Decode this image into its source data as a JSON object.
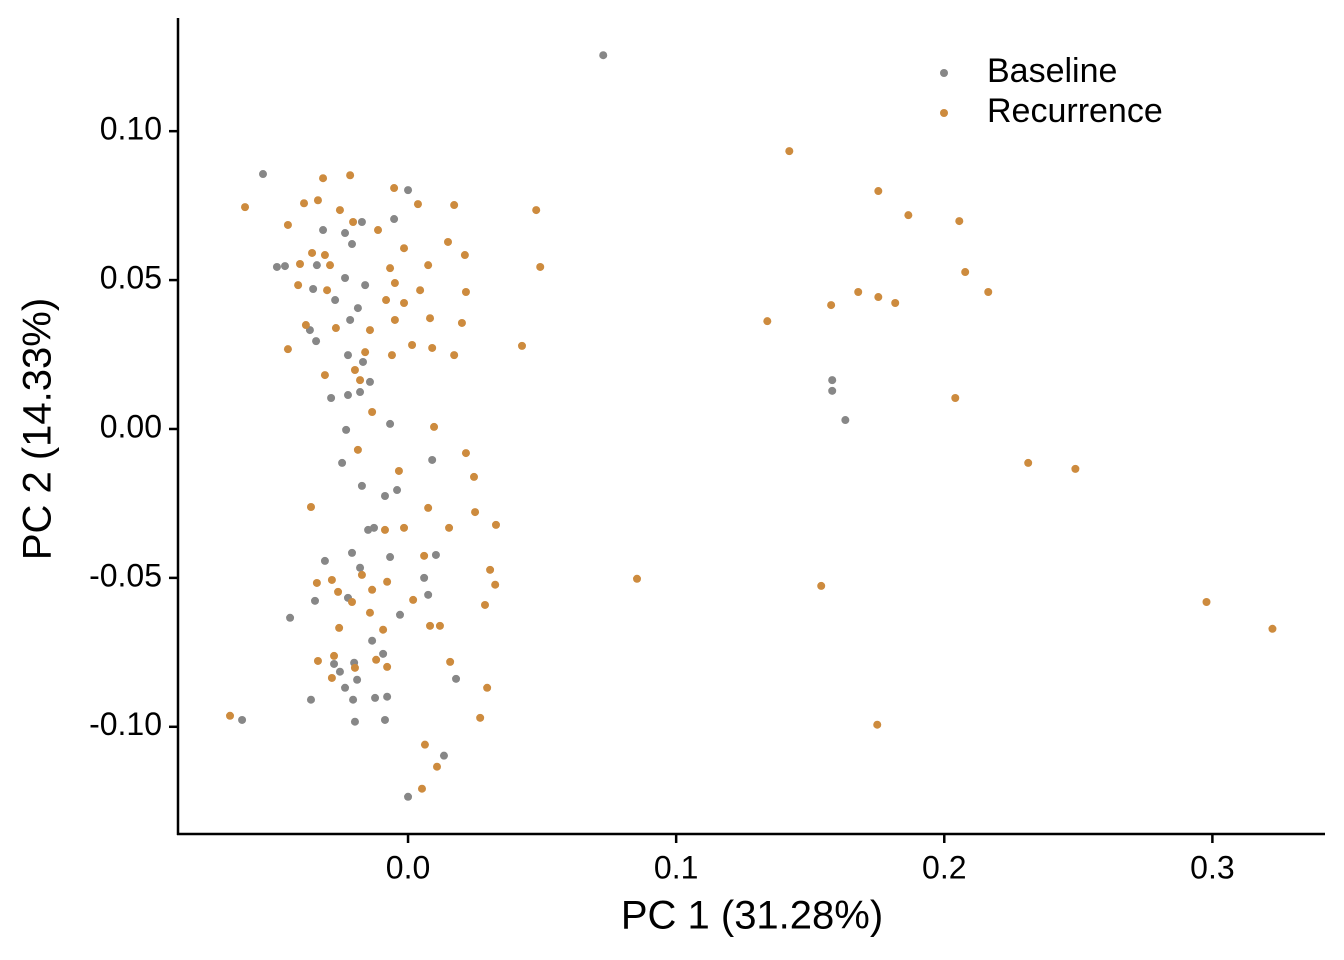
{
  "chart_data": {
    "type": "scatter",
    "xlabel": "PC 1 (31.28%)",
    "ylabel": "PC 2 (14.33%)",
    "xlim": [
      -0.0858,
      0.342
    ],
    "ylim": [
      -0.136,
      0.138
    ],
    "xticks": [
      {
        "value": 0,
        "label": "0.0"
      },
      0.1,
      0.2,
      0.3
    ],
    "yticks": [
      {
        "value": -0.1,
        "label": "-0.10"
      },
      -0.05,
      {
        "value": 0,
        "label": "0.00"
      },
      0.05,
      {
        "value": 0.1,
        "label": "0.10"
      }
    ],
    "grid": false,
    "legend": "top-right",
    "series": [
      {
        "name": "Baseline",
        "color": "#878787",
        "x": [
          0.0728,
          -0.0541,
          -0.0619,
          -0.0489,
          -0.0459,
          -0.044,
          0.1582,
          0.1582,
          0.1631,
          0.0,
          0.0134,
          0.0179,
          0.0,
          -0.0052,
          -0.0172,
          -0.0235,
          -0.0209,
          -0.0317,
          -0.034,
          -0.0354,
          -0.0272,
          -0.0235,
          -0.016,
          -0.0187,
          -0.0216,
          -0.0366,
          -0.0343,
          -0.0224,
          -0.0168,
          -0.0142,
          -0.0179,
          -0.0287,
          -0.0224,
          -0.0231,
          -0.0067,
          -0.0246,
          -0.0172,
          -0.0086,
          -0.0041,
          0.009,
          -0.0127,
          -0.0149,
          -0.0209,
          -0.031,
          -0.0067,
          0.006,
          0.0104,
          -0.003,
          -0.0179,
          -0.0347,
          -0.0224,
          -0.0134,
          -0.0093,
          -0.0254,
          -0.0235,
          -0.019,
          -0.0205,
          -0.0078,
          -0.0123,
          -0.0198,
          -0.0086,
          -0.0362,
          -0.0276,
          0.0075,
          -0.0201
        ],
        "values": [
          0.1255,
          0.0856,
          -0.0977,
          0.0544,
          0.0547,
          -0.0634,
          0.0164,
          0.0128,
          0.003,
          -0.1235,
          -0.1097,
          -0.0839,
          0.0802,
          0.0705,
          0.0695,
          0.0658,
          0.0621,
          0.0668,
          0.055,
          0.047,
          0.0433,
          0.0507,
          0.0483,
          0.0406,
          0.0366,
          0.0332,
          0.0295,
          0.0248,
          0.0225,
          0.0158,
          0.0124,
          0.0104,
          0.0114,
          -0.0003,
          0.0017,
          -0.0114,
          -0.0191,
          -0.0225,
          -0.0205,
          -0.0104,
          -0.0332,
          -0.0339,
          -0.0416,
          -0.0443,
          -0.043,
          -0.05,
          -0.0423,
          -0.0624,
          -0.0466,
          -0.0577,
          -0.0567,
          -0.0711,
          -0.0755,
          -0.0815,
          -0.0869,
          -0.0842,
          -0.0909,
          -0.0899,
          -0.0903,
          -0.0983,
          -0.0977,
          -0.0909,
          -0.0789,
          -0.0557,
          -0.0785
        ]
      },
      {
        "name": "Recurrence",
        "color": "#cd8b3e",
        "x": [
          0.1422,
          0.1754,
          0.1866,
          0.2056,
          0.2078,
          0.2164,
          0.1679,
          0.1754,
          0.1817,
          0.1578,
          0.134,
          0.2041,
          0.2313,
          0.2489,
          0.0854,
          0.1541,
          0.2978,
          0.3224,
          0.175,
          -0.0664,
          -0.0608,
          0.0478,
          0.0493,
          0.0425,
          0.0172,
          0.0149,
          0.0212,
          0.0216,
          0.0201,
          0.0172,
          0.0082,
          0.0075,
          -0.0015,
          -0.0052,
          0.0037,
          -0.0216,
          -0.0317,
          -0.0388,
          -0.0448,
          -0.0336,
          -0.0254,
          -0.0205,
          -0.0112,
          -0.0358,
          -0.031,
          -0.0403,
          -0.0291,
          -0.0067,
          -0.0049,
          0.0045,
          -0.0015,
          -0.0082,
          -0.0142,
          -0.0049,
          0.0015,
          0.009,
          -0.006,
          -0.016,
          -0.0198,
          -0.0179,
          -0.0134,
          -0.0269,
          -0.0381,
          -0.0448,
          -0.031,
          -0.041,
          -0.0302,
          0.0097,
          0.0216,
          0.0246,
          -0.0187,
          -0.0034,
          0.0075,
          0.0153,
          0.025,
          0.0328,
          0.0306,
          0.0325,
          0.0287,
          0.0295,
          0.0269,
          0.0157,
          0.0119,
          0.0082,
          0.006,
          0.0019,
          -0.0015,
          -0.0086,
          -0.0078,
          -0.0172,
          -0.0134,
          -0.0209,
          -0.0261,
          -0.034,
          -0.0362,
          -0.0284,
          -0.0257,
          -0.0093,
          -0.0142,
          -0.0336,
          -0.0276,
          -0.0119,
          -0.0078,
          -0.0284,
          -0.0198,
          0.0063,
          0.0052,
          0.0108
        ],
        "values": [
          0.0933,
          0.0799,
          0.0718,
          0.0698,
          0.0527,
          0.046,
          0.046,
          0.0443,
          0.0423,
          0.0416,
          0.0362,
          0.0104,
          -0.0114,
          -0.0134,
          -0.0503,
          -0.0527,
          -0.0581,
          -0.0671,
          -0.0993,
          -0.0963,
          0.0745,
          0.0735,
          0.0544,
          0.0279,
          0.0752,
          0.0628,
          0.0584,
          0.046,
          0.0356,
          0.0248,
          0.0372,
          0.055,
          0.0607,
          0.0809,
          0.0755,
          0.0852,
          0.0842,
          0.0758,
          0.0685,
          0.0768,
          0.0735,
          0.0695,
          0.0668,
          0.0591,
          0.0584,
          0.0554,
          0.055,
          0.054,
          0.049,
          0.0466,
          0.0423,
          0.0433,
          0.0332,
          0.0366,
          0.0282,
          0.0272,
          0.0248,
          0.0258,
          0.0198,
          0.0164,
          0.0057,
          0.0339,
          0.0349,
          0.0268,
          0.0181,
          0.0483,
          0.0466,
          0.0007,
          -0.0081,
          -0.0161,
          -0.007,
          -0.0141,
          -0.0265,
          -0.0332,
          -0.0279,
          -0.0322,
          -0.0473,
          -0.0523,
          -0.0591,
          -0.0869,
          -0.097,
          -0.0782,
          -0.0661,
          -0.0661,
          -0.0426,
          -0.0574,
          -0.0332,
          -0.0339,
          -0.0513,
          -0.049,
          -0.054,
          -0.0581,
          -0.0547,
          -0.0517,
          -0.0262,
          -0.0507,
          -0.0668,
          -0.0674,
          -0.0617,
          -0.0779,
          -0.0762,
          -0.0775,
          -0.0799,
          -0.0836,
          -0.0802,
          -0.106,
          -0.1208,
          -0.1134
        ]
      }
    ]
  }
}
